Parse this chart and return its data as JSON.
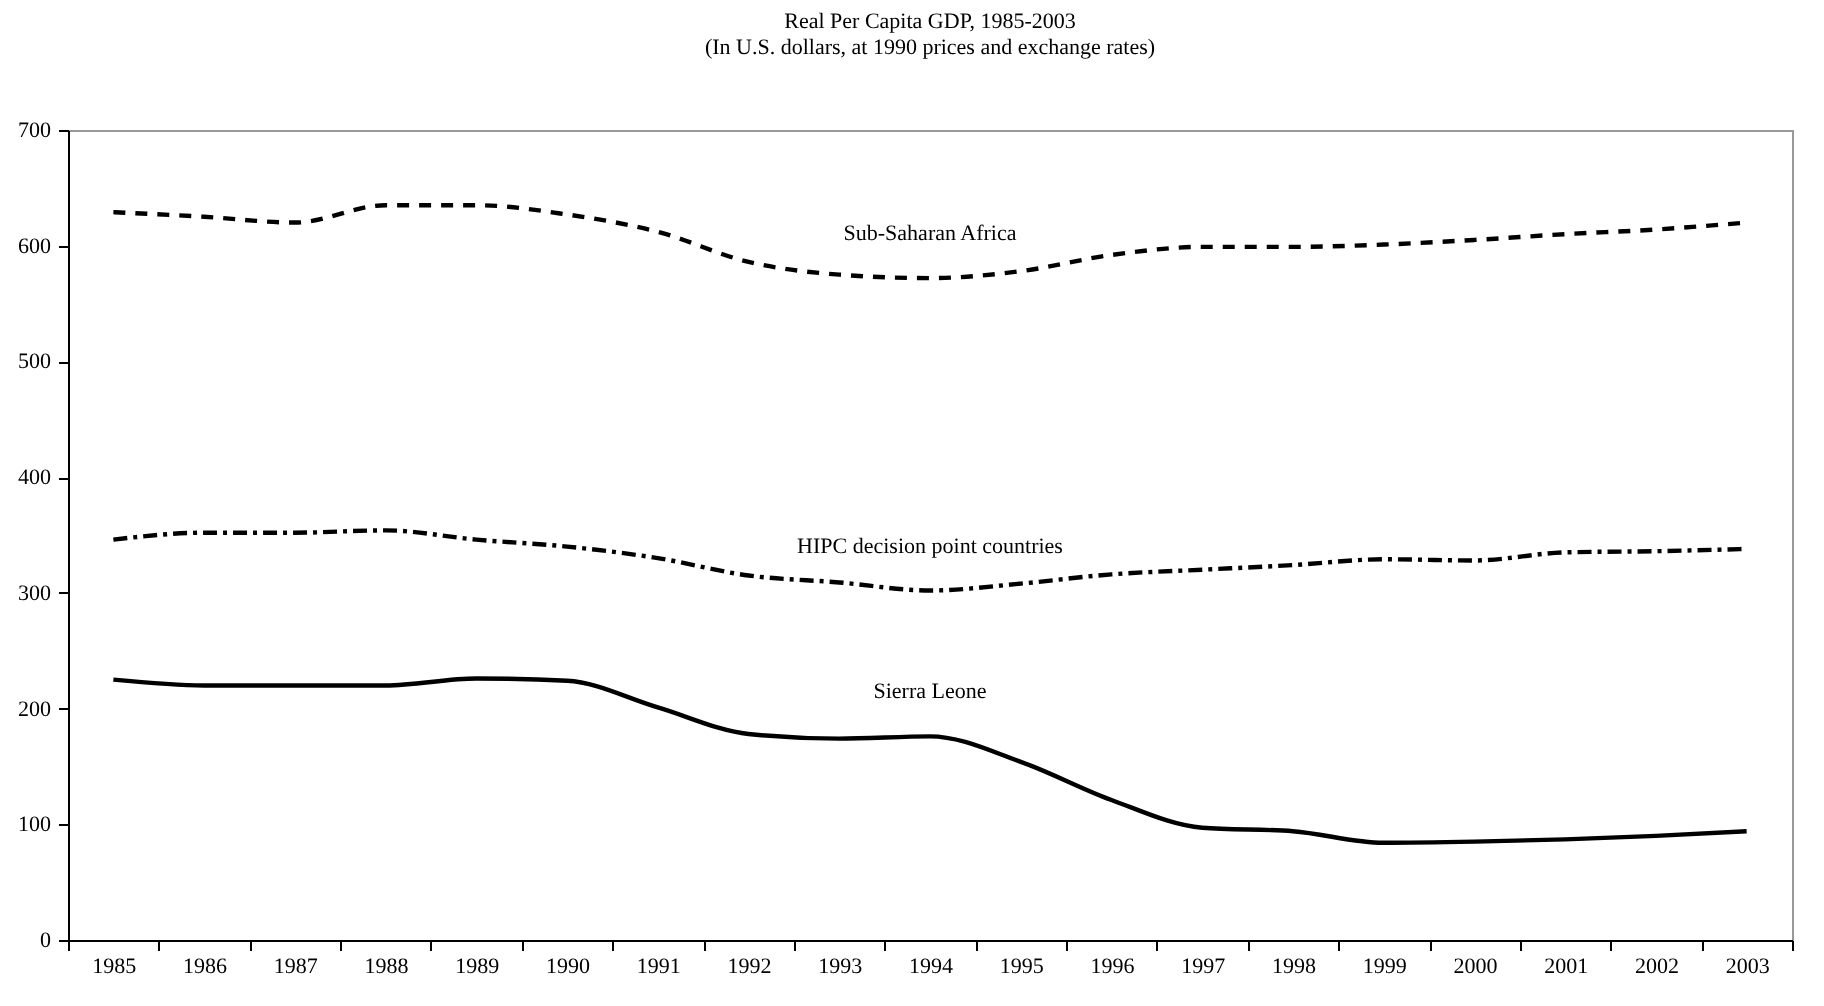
{
  "chart_data": {
    "type": "line",
    "title": "Real Per Capita GDP, 1985-2003",
    "subtitle": "(In U.S. dollars, at 1990 prices and exchange rates)",
    "categories": [
      "1985",
      "1986",
      "1987",
      "1988",
      "1989",
      "1990",
      "1991",
      "1992",
      "1993",
      "1994",
      "1995",
      "1996",
      "1997",
      "1998",
      "1999",
      "2000",
      "2001",
      "2002",
      "2003"
    ],
    "ylim": [
      0,
      700
    ],
    "yticks": [
      0,
      100,
      200,
      300,
      400,
      500,
      600,
      700
    ],
    "grid": false,
    "marker": "none",
    "series": [
      {
        "name": "Sub-Saharan Africa",
        "color": "#000000",
        "line_style": "dashed",
        "values": [
          629,
          625,
          620,
          635,
          635,
          627,
          612,
          586,
          575,
          572,
          578,
          592,
          599,
          599,
          601,
          605,
          610,
          614,
          620
        ]
      },
      {
        "name": "HIPC decision point countries",
        "color": "#000000",
        "line_style": "dotted",
        "values": [
          346,
          352,
          352,
          354,
          346,
          340,
          330,
          315,
          309,
          302,
          308,
          316,
          320,
          324,
          329,
          328,
          335,
          336,
          338
        ]
      },
      {
        "name": "Sierra Leone",
        "color": "#000000",
        "line_style": "solid",
        "values": [
          225,
          220,
          220,
          220,
          226,
          224,
          201,
          178,
          174,
          176,
          154,
          121,
          97,
          94,
          84,
          85,
          87,
          90,
          94
        ]
      }
    ]
  }
}
